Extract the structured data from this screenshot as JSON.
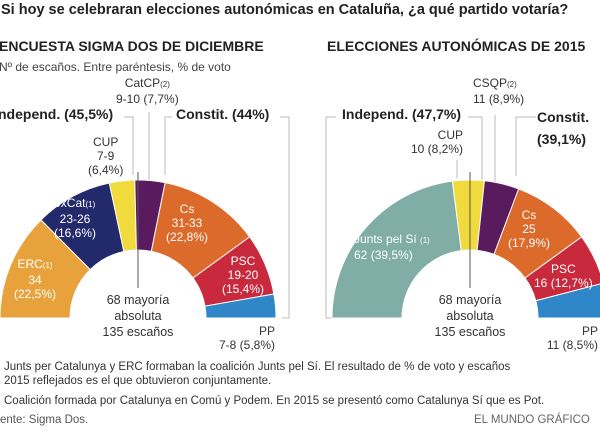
{
  "question": "Si hoy se celebraran elecciones autonómicas en Cataluña, ¿a qué partido votaría?",
  "subtitle": "Nº de escaños. Entre paréntesis, % de voto",
  "center_label": {
    "line1": "68 mayoría",
    "line2": "absoluta",
    "line3": "135 escaños"
  },
  "footnotes": [
    "Junts per Catalunya y ERC formaban la coalición Junts pel Sí. El resultado de % de voto y escaños",
    "2015 reflejados es el que obtuvieron conjuntamente.",
    "Coalición formada por Catalunya en Comú y Podem. En 2015 se presentó como Catalunya Sí que es Pot."
  ],
  "source": "ente: Sigma Dos.",
  "credit": "EL MUNDO GRÁFICO",
  "chart_data": [
    {
      "type": "hemicycle",
      "title": "ENCUESTA SIGMA DOS DE DICIEMBRE",
      "total_seats": 135,
      "majority": 68,
      "groups": [
        {
          "label": "ndepend. (45,5%)"
        },
        {
          "label": "Constit. (44%)"
        }
      ],
      "parties": [
        {
          "name": "ERC",
          "note": "(1)",
          "seats": "34",
          "seats_mid": 34,
          "vote": "(22,5%)",
          "vote_pct": 22.5,
          "color": "#e8a23c"
        },
        {
          "name": "JxCat",
          "note": "(1)",
          "seats": "23-26",
          "seats_mid": 24.5,
          "vote": "(16,6%)",
          "vote_pct": 16.6,
          "color": "#232a6c"
        },
        {
          "name": "CUP",
          "note": "",
          "seats": "7-9",
          "seats_mid": 8,
          "vote": "(6,4%)",
          "vote_pct": 6.4,
          "color": "#f0da3c"
        },
        {
          "name": "CatCP",
          "note": "(2)",
          "seats": "9-10",
          "seats_mid": 9.5,
          "vote": "(7,7%)",
          "vote_pct": 7.7,
          "color": "#5a1b5e"
        },
        {
          "name": "Cs",
          "note": "",
          "seats": "31-33",
          "seats_mid": 32,
          "vote": "(22,8%)",
          "vote_pct": 22.8,
          "color": "#dc6a2b"
        },
        {
          "name": "PSC",
          "note": "",
          "seats": "19-20",
          "seats_mid": 19.5,
          "vote": "(15,4%)",
          "vote_pct": 15.4,
          "color": "#c9293d"
        },
        {
          "name": "PP",
          "note": "",
          "seats": "7-8",
          "seats_mid": 7.5,
          "vote": "(5,8%)",
          "vote_pct": 5.8,
          "color": "#2f87c9"
        }
      ]
    },
    {
      "type": "hemicycle",
      "title": "ELECCIONES AUTONÓMICAS DE 2015",
      "total_seats": 135,
      "majority": 68,
      "groups": [
        {
          "label": "Independ. (47,7%)"
        },
        {
          "label": "Constit.",
          "label2": "(39,1%)"
        }
      ],
      "parties": [
        {
          "name": "Junts pel Sí",
          "note": "(1)",
          "seats": "62",
          "seats_mid": 62,
          "vote": "(39,5%)",
          "vote_pct": 39.5,
          "color": "#80aea7"
        },
        {
          "name": "CUP",
          "note": "",
          "seats": "10",
          "seats_mid": 10,
          "vote": "(8,2%)",
          "vote_pct": 8.2,
          "color": "#f0da3c"
        },
        {
          "name": "CSQP",
          "note": "(2)",
          "seats": "11",
          "seats_mid": 11,
          "vote": "(8,9%)",
          "vote_pct": 8.9,
          "color": "#5a1b5e"
        },
        {
          "name": "Cs",
          "note": "",
          "seats": "25",
          "seats_mid": 25,
          "vote": "(17,9%)",
          "vote_pct": 17.9,
          "color": "#dc6a2b"
        },
        {
          "name": "PSC",
          "note": "",
          "seats": "16",
          "seats_mid": 16,
          "vote": "(12,7%)",
          "vote_pct": 12.7,
          "color": "#c9293d"
        },
        {
          "name": "PP",
          "note": "",
          "seats": "11",
          "seats_mid": 11,
          "vote": "(8,5%)",
          "vote_pct": 8.5,
          "color": "#2f87c9"
        }
      ]
    }
  ]
}
